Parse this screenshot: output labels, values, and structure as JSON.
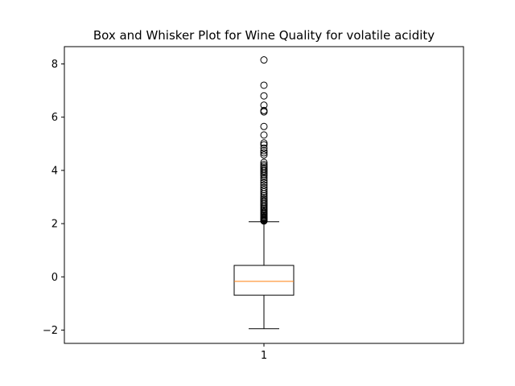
{
  "chart_data": {
    "type": "box",
    "title": "Box and Whisker Plot for Wine Quality for volatile acidity",
    "xlabel": "",
    "ylabel": "",
    "categories": [
      "1"
    ],
    "ylim": [
      -2.5,
      8.65
    ],
    "yticks": [
      -2,
      0,
      2,
      4,
      6,
      8
    ],
    "ytick_labels": [
      "−2",
      "0",
      "2",
      "4",
      "6",
      "8"
    ],
    "grid": false,
    "box": {
      "whisker_low": -1.95,
      "q1": -0.69,
      "median": -0.17,
      "q3": 0.43,
      "whisker_high": 2.07,
      "outliers": [
        2.1,
        2.12,
        2.15,
        2.18,
        2.2,
        2.23,
        2.26,
        2.3,
        2.34,
        2.38,
        2.42,
        2.47,
        2.52,
        2.57,
        2.62,
        2.68,
        2.74,
        2.8,
        2.86,
        2.92,
        2.98,
        3.05,
        3.12,
        3.2,
        3.28,
        3.36,
        3.45,
        3.54,
        3.63,
        3.72,
        3.8,
        3.86,
        3.92,
        3.98,
        4.04,
        4.1,
        4.16,
        4.22,
        4.3,
        4.58,
        4.66,
        4.74,
        4.84,
        4.96,
        5.03,
        5.33,
        5.65,
        6.2,
        6.25,
        6.45,
        6.8,
        7.2,
        8.15
      ]
    },
    "colors": {
      "box": "#000000",
      "median": "#ff7f0e",
      "outlier": "#000000"
    }
  }
}
